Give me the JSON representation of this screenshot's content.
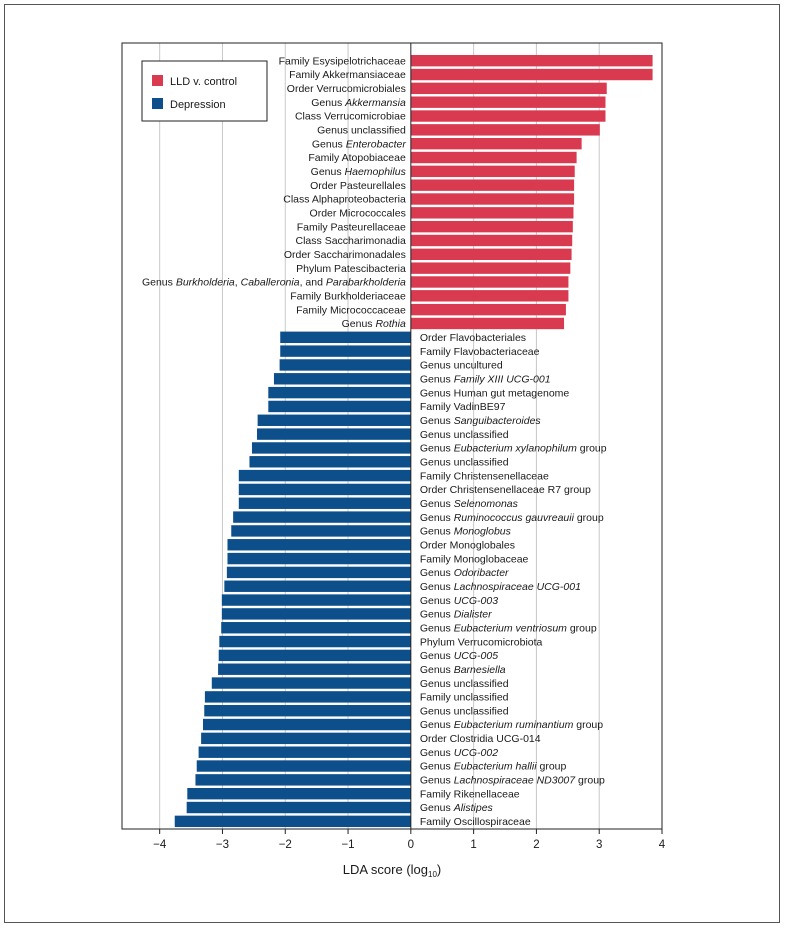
{
  "chart_data": {
    "type": "bar",
    "orientation": "horizontal",
    "xlabel": "LDA score (log",
    "xlabel_subscript": "10",
    "xlabel_suffix": ")",
    "xlim": [
      -4.6,
      4.0
    ],
    "xticks": [
      {
        "value": -4,
        "label": "−4"
      },
      {
        "value": -3,
        "label": "−3"
      },
      {
        "value": -2,
        "label": "−2"
      },
      {
        "value": -1,
        "label": "−1"
      },
      {
        "value": 0,
        "label": "0"
      },
      {
        "value": 1,
        "label": "1"
      },
      {
        "value": 2,
        "label": "2"
      },
      {
        "value": 3,
        "label": "3"
      },
      {
        "value": 4,
        "label": "4"
      }
    ],
    "grid": "vertical",
    "legend_position": "top-left",
    "series": [
      {
        "name": "LLD v. control",
        "color": "#d93a50"
      },
      {
        "name": "Depression",
        "color": "#0d4f8b"
      }
    ],
    "bars": [
      {
        "group": 0,
        "value": 3.85,
        "label": [
          {
            "t": "Family Esysipelotrichaceae"
          }
        ]
      },
      {
        "group": 0,
        "value": 3.85,
        "label": [
          {
            "t": "Family Akkermansiaceae"
          }
        ]
      },
      {
        "group": 0,
        "value": 3.12,
        "label": [
          {
            "t": "Order Verrucomicrobiales"
          }
        ]
      },
      {
        "group": 0,
        "value": 3.1,
        "label": [
          {
            "t": "Genus "
          },
          {
            "t": "Akkermansia",
            "i": true
          }
        ]
      },
      {
        "group": 0,
        "value": 3.1,
        "label": [
          {
            "t": "Class Verrucomicrobiae"
          }
        ]
      },
      {
        "group": 0,
        "value": 3.01,
        "label": [
          {
            "t": "Genus unclassified"
          }
        ]
      },
      {
        "group": 0,
        "value": 2.72,
        "label": [
          {
            "t": "Genus "
          },
          {
            "t": "Enterobacter",
            "i": true
          }
        ]
      },
      {
        "group": 0,
        "value": 2.64,
        "label": [
          {
            "t": "Family Atopobiaceae"
          }
        ]
      },
      {
        "group": 0,
        "value": 2.61,
        "label": [
          {
            "t": "Genus "
          },
          {
            "t": "Haemophilus",
            "i": true
          }
        ]
      },
      {
        "group": 0,
        "value": 2.6,
        "label": [
          {
            "t": "Order Pasteurellales"
          }
        ]
      },
      {
        "group": 0,
        "value": 2.6,
        "label": [
          {
            "t": "Class Alphaproteobacteria"
          }
        ]
      },
      {
        "group": 0,
        "value": 2.59,
        "label": [
          {
            "t": "Order Micrococcales"
          }
        ]
      },
      {
        "group": 0,
        "value": 2.58,
        "label": [
          {
            "t": "Family Pasteurellaceae"
          }
        ]
      },
      {
        "group": 0,
        "value": 2.57,
        "label": [
          {
            "t": "Class Saccharimonadia"
          }
        ]
      },
      {
        "group": 0,
        "value": 2.56,
        "label": [
          {
            "t": "Order Saccharimonadales"
          }
        ]
      },
      {
        "group": 0,
        "value": 2.54,
        "label": [
          {
            "t": "Phylum Patescibacteria"
          }
        ]
      },
      {
        "group": 0,
        "value": 2.51,
        "label": [
          {
            "t": "Genus "
          },
          {
            "t": "Burkholderia",
            "i": true
          },
          {
            "t": ", "
          },
          {
            "t": "Caballeronia",
            "i": true
          },
          {
            "t": ", and "
          },
          {
            "t": "Parabarkholderia",
            "i": true
          }
        ]
      },
      {
        "group": 0,
        "value": 2.51,
        "label": [
          {
            "t": "Family Burkholderiaceae"
          }
        ]
      },
      {
        "group": 0,
        "value": 2.47,
        "label": [
          {
            "t": "Family Micrococcaceae"
          }
        ]
      },
      {
        "group": 0,
        "value": 2.44,
        "label": [
          {
            "t": "Genus "
          },
          {
            "t": "Rothia",
            "i": true
          }
        ]
      },
      {
        "group": 1,
        "value": -2.08,
        "label": [
          {
            "t": "Order Flavobacteriales"
          }
        ]
      },
      {
        "group": 1,
        "value": -2.08,
        "label": [
          {
            "t": "Family Flavobacteriaceae"
          }
        ]
      },
      {
        "group": 1,
        "value": -2.09,
        "label": [
          {
            "t": "Genus uncultured"
          }
        ]
      },
      {
        "group": 1,
        "value": -2.18,
        "label": [
          {
            "t": "Genus "
          },
          {
            "t": "Family XIII UCG-001",
            "i": true
          }
        ]
      },
      {
        "group": 1,
        "value": -2.27,
        "label": [
          {
            "t": "Genus Human gut metagenome"
          }
        ]
      },
      {
        "group": 1,
        "value": -2.27,
        "label": [
          {
            "t": "Family VadinBE97"
          }
        ]
      },
      {
        "group": 1,
        "value": -2.44,
        "label": [
          {
            "t": "Genus "
          },
          {
            "t": "Sanguibacteroides",
            "i": true
          }
        ]
      },
      {
        "group": 1,
        "value": -2.45,
        "label": [
          {
            "t": "Genus unclassified"
          }
        ]
      },
      {
        "group": 1,
        "value": -2.53,
        "label": [
          {
            "t": "Genus "
          },
          {
            "t": "Eubacterium xylanophilum",
            "i": true
          },
          {
            "t": " group"
          }
        ]
      },
      {
        "group": 1,
        "value": -2.57,
        "label": [
          {
            "t": "Genus unclassified"
          }
        ]
      },
      {
        "group": 1,
        "value": -2.74,
        "label": [
          {
            "t": "Family Christensenellaceae"
          }
        ]
      },
      {
        "group": 1,
        "value": -2.74,
        "label": [
          {
            "t": "Order Christensenellaceae R7 group"
          }
        ]
      },
      {
        "group": 1,
        "value": -2.74,
        "label": [
          {
            "t": "Genus "
          },
          {
            "t": "Selenomonas",
            "i": true
          }
        ]
      },
      {
        "group": 1,
        "value": -2.83,
        "label": [
          {
            "t": "Genus "
          },
          {
            "t": "Ruminococcus gauvreauii",
            "i": true
          },
          {
            "t": " group"
          }
        ]
      },
      {
        "group": 1,
        "value": -2.86,
        "label": [
          {
            "t": "Genus "
          },
          {
            "t": "Monoglobus",
            "i": true
          }
        ]
      },
      {
        "group": 1,
        "value": -2.92,
        "label": [
          {
            "t": "Order Monoglobales"
          }
        ]
      },
      {
        "group": 1,
        "value": -2.92,
        "label": [
          {
            "t": "Family Monoglobaceae"
          }
        ]
      },
      {
        "group": 1,
        "value": -2.93,
        "label": [
          {
            "t": "Genus "
          },
          {
            "t": "Odoribacter",
            "i": true
          }
        ]
      },
      {
        "group": 1,
        "value": -2.97,
        "label": [
          {
            "t": "Genus "
          },
          {
            "t": "Lachnospiraceae UCG-001",
            "i": true
          }
        ]
      },
      {
        "group": 1,
        "value": -3.01,
        "label": [
          {
            "t": "Genus "
          },
          {
            "t": "UCG-003",
            "i": true
          }
        ]
      },
      {
        "group": 1,
        "value": -3.01,
        "label": [
          {
            "t": "Genus "
          },
          {
            "t": "Dialister",
            "i": true
          }
        ]
      },
      {
        "group": 1,
        "value": -3.02,
        "label": [
          {
            "t": "Genus "
          },
          {
            "t": "Eubacterium ventriosum",
            "i": true
          },
          {
            "t": " group"
          }
        ]
      },
      {
        "group": 1,
        "value": -3.05,
        "label": [
          {
            "t": "Phylum Verrucomicrobiota"
          }
        ]
      },
      {
        "group": 1,
        "value": -3.06,
        "label": [
          {
            "t": "Genus "
          },
          {
            "t": "UCG-005",
            "i": true
          }
        ]
      },
      {
        "group": 1,
        "value": -3.07,
        "label": [
          {
            "t": "Genus "
          },
          {
            "t": "Barnesiella",
            "i": true
          }
        ]
      },
      {
        "group": 1,
        "value": -3.17,
        "label": [
          {
            "t": "Genus unclassified"
          }
        ]
      },
      {
        "group": 1,
        "value": -3.28,
        "label": [
          {
            "t": "Family unclassified"
          }
        ]
      },
      {
        "group": 1,
        "value": -3.29,
        "label": [
          {
            "t": "Genus unclassified"
          }
        ]
      },
      {
        "group": 1,
        "value": -3.31,
        "label": [
          {
            "t": "Genus "
          },
          {
            "t": "Eubacterium ruminantium",
            "i": true
          },
          {
            "t": " group"
          }
        ]
      },
      {
        "group": 1,
        "value": -3.34,
        "label": [
          {
            "t": "Order Clostridia UCG-014"
          }
        ]
      },
      {
        "group": 1,
        "value": -3.38,
        "label": [
          {
            "t": "Genus "
          },
          {
            "t": "UCG-002",
            "i": true
          }
        ]
      },
      {
        "group": 1,
        "value": -3.41,
        "label": [
          {
            "t": "Genus "
          },
          {
            "t": "Eubacterium hallii",
            "i": true
          },
          {
            "t": " group"
          }
        ]
      },
      {
        "group": 1,
        "value": -3.43,
        "label": [
          {
            "t": "Genus "
          },
          {
            "t": "Lachnospiraceae ND3007",
            "i": true
          },
          {
            "t": " group"
          }
        ]
      },
      {
        "group": 1,
        "value": -3.56,
        "label": [
          {
            "t": "Family Rikenellaceae"
          }
        ]
      },
      {
        "group": 1,
        "value": -3.57,
        "label": [
          {
            "t": "Genus "
          },
          {
            "t": "Alistipes",
            "i": true
          }
        ]
      },
      {
        "group": 1,
        "value": -3.76,
        "label": [
          {
            "t": "Family Oscillospiraceae"
          }
        ]
      }
    ]
  }
}
